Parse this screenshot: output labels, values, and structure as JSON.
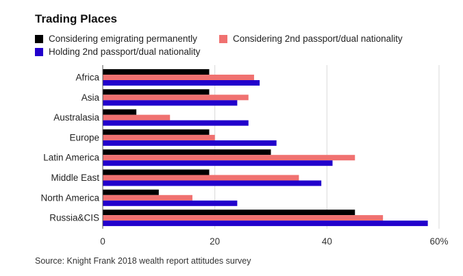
{
  "title": "Trading Places",
  "source": "Source: Knight Frank 2018 wealth report attitudes survey",
  "colors": {
    "emigrating": "#000000",
    "consider_passport": "#f07170",
    "holding_passport": "#2200cc",
    "grid": "#d9d9d9",
    "axis_text": "#333333"
  },
  "chart_data": {
    "type": "bar",
    "orientation": "horizontal",
    "title": "Trading Places",
    "categories": [
      "Africa",
      "Asia",
      "Australasia",
      "Europe",
      "Latin America",
      "Middle East",
      "North America",
      "Russia&CIS"
    ],
    "series": [
      {
        "name": "Considering emigrating permanently",
        "values": [
          19,
          19,
          6,
          19,
          30,
          19,
          10,
          45
        ]
      },
      {
        "name": "Considering 2nd passport/dual nationality",
        "values": [
          27,
          26,
          12,
          20,
          45,
          35,
          16,
          50
        ]
      },
      {
        "name": "Holding 2nd passport/dual nationality",
        "values": [
          28,
          24,
          26,
          31,
          41,
          39,
          24,
          58
        ]
      }
    ],
    "xlim": [
      0,
      60
    ],
    "ticks": [
      0,
      20,
      40,
      60
    ],
    "tick_labels": [
      "0",
      "20",
      "40",
      "60%"
    ],
    "grid": true,
    "legend": "top"
  }
}
